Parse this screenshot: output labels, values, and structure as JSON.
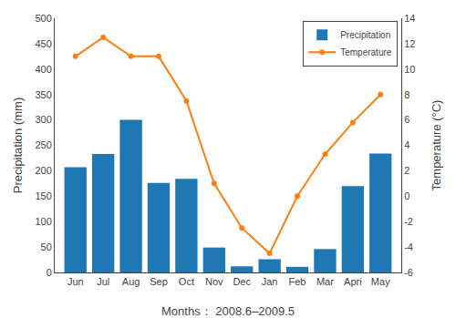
{
  "chart_data": {
    "type": "bar",
    "categories": [
      "Jun",
      "Jul",
      "Aug",
      "Sep",
      "Oct",
      "Nov",
      "Dec",
      "Jan",
      "Feb",
      "Mar",
      "Apri",
      "May"
    ],
    "xlabel": "Months： 2008.6–2009.5",
    "ylabel": "Precipitation (mm)",
    "y2label": "Temperature (°C)",
    "series": [
      {
        "name": "Precipitation",
        "type": "bar",
        "values": [
          207,
          233,
          300,
          176,
          184,
          49,
          12,
          26,
          11,
          46,
          170,
          234
        ]
      },
      {
        "name": "Temperature",
        "type": "line",
        "axis": "y2",
        "marker": "circle",
        "line_style": "solid",
        "values": [
          11.0,
          12.5,
          11.0,
          11.0,
          7.5,
          1.0,
          -2.5,
          -4.5,
          0.0,
          3.3,
          5.8,
          8.0
        ]
      }
    ],
    "ylim": [
      0,
      500
    ],
    "yticks": [
      0,
      50,
      100,
      150,
      200,
      250,
      300,
      350,
      400,
      450,
      500
    ],
    "y2lim": [
      -6,
      14
    ],
    "y2ticks": [
      -6,
      -4,
      -2,
      0,
      2,
      4,
      6,
      8,
      10,
      12,
      14
    ],
    "grid": false,
    "legend": "upper right"
  }
}
